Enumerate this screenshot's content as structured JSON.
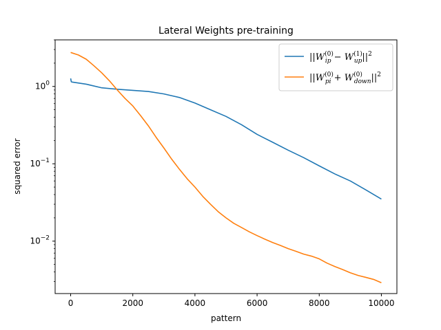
{
  "chart_data": {
    "type": "line",
    "title": "Lateral Weights pre-training",
    "xlabel": "pattern",
    "ylabel": "squared error",
    "y_scale": "log",
    "xlim": [
      -500,
      10500
    ],
    "ylim": [
      0.0021,
      4.0
    ],
    "x_ticks": [
      0,
      2000,
      4000,
      6000,
      8000,
      10000
    ],
    "x_tick_labels": [
      "0",
      "2000",
      "4000",
      "6000",
      "8000",
      "10000"
    ],
    "y_ticks": [
      0.01,
      0.1,
      1
    ],
    "y_tick_labels": [
      {
        "base": "10",
        "exp": "−2"
      },
      {
        "base": "10",
        "exp": "−1"
      },
      {
        "base": "10",
        "exp": "0"
      }
    ],
    "legend_position": "top-right",
    "grid": false,
    "series": [
      {
        "name": "||W_ip^(0) − W_up^(1)||^2",
        "legend_label": {
          "pre": "||",
          "W1": "W",
          "W1sub": "ip",
          "W1sup": "(0)",
          "op": " − ",
          "W2": "W",
          "W2sub": "up",
          "W2sup": "(1)",
          "post": "||",
          "postsup": "2"
        },
        "color": "#1f77b4",
        "x": [
          0,
          20,
          40,
          500,
          1000,
          1500,
          2000,
          2500,
          3000,
          3500,
          4000,
          4500,
          5000,
          5500,
          6000,
          6500,
          7000,
          7500,
          8000,
          8500,
          9000,
          9500,
          10000
        ],
        "y": [
          1.27,
          1.15,
          1.14,
          1.07,
          0.96,
          0.92,
          0.89,
          0.86,
          0.8,
          0.72,
          0.61,
          0.5,
          0.41,
          0.32,
          0.24,
          0.19,
          0.15,
          0.12,
          0.094,
          0.074,
          0.06,
          0.046,
          0.035
        ]
      },
      {
        "name": "||W_pi^(0) + W_down^(0)||^2",
        "legend_label": {
          "pre": "||",
          "W1": "W",
          "W1sub": "pi",
          "W1sup": "(0)",
          "op": " + ",
          "W2": "W",
          "W2sub": "down",
          "W2sup": "(0)",
          "post": "||",
          "postsup": "2"
        },
        "color": "#ff7f0e",
        "x": [
          0,
          250,
          500,
          750,
          1000,
          1250,
          1500,
          1750,
          2000,
          2250,
          2500,
          2750,
          3000,
          3250,
          3500,
          3750,
          4000,
          4250,
          4500,
          4750,
          5000,
          5250,
          5500,
          5750,
          6000,
          6250,
          6500,
          6750,
          7000,
          7250,
          7500,
          7750,
          8000,
          8250,
          8500,
          8750,
          9000,
          9250,
          9500,
          9750,
          10000
        ],
        "y": [
          2.75,
          2.55,
          2.25,
          1.85,
          1.5,
          1.18,
          0.9,
          0.7,
          0.56,
          0.42,
          0.31,
          0.22,
          0.16,
          0.115,
          0.085,
          0.064,
          0.05,
          0.038,
          0.03,
          0.024,
          0.02,
          0.017,
          0.015,
          0.0132,
          0.0118,
          0.0106,
          0.0096,
          0.0088,
          0.008,
          0.0074,
          0.0068,
          0.0064,
          0.0059,
          0.0052,
          0.0047,
          0.0043,
          0.0039,
          0.0036,
          0.0034,
          0.0032,
          0.0029
        ]
      }
    ]
  }
}
